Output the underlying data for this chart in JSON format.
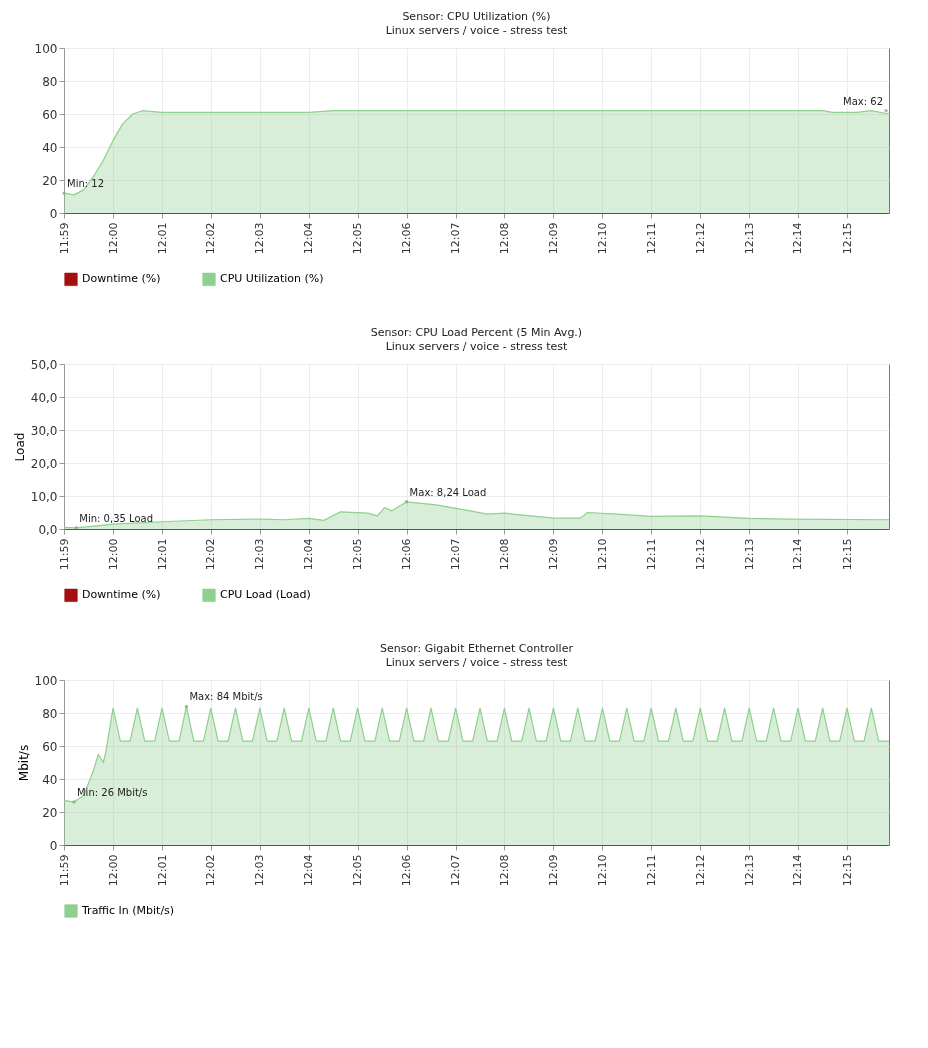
{
  "chart_data": [
    {
      "type": "area",
      "title": "Sensor: CPU Utilization (%)",
      "subtitle": "Linux servers / voice - stress test",
      "x": [
        11.9833,
        11.9867,
        11.99,
        11.9933,
        11.9967,
        12.0,
        12.0033,
        12.0067,
        12.01,
        12.0167,
        12.0667,
        12.075,
        12.2417,
        12.245,
        12.2533,
        12.2583,
        12.2643
      ],
      "series": [
        {
          "name": "Downtime (%)",
          "color": "#a50f0f",
          "values": [
            null,
            null,
            null,
            null,
            null,
            null,
            null,
            null,
            null,
            null,
            null,
            null,
            null,
            null,
            null,
            null,
            null
          ]
        },
        {
          "name": "CPU Utilization (%)",
          "color": "#8fcf8f",
          "values": [
            12,
            11,
            14,
            22,
            32,
            44,
            54,
            60,
            62,
            61,
            61,
            62,
            62,
            61,
            61,
            62,
            60
          ]
        }
      ],
      "xlim": [
        11.9833,
        12.2643
      ],
      "ylim": [
        0,
        100
      ],
      "yticks": [
        0,
        20,
        40,
        60,
        80,
        100
      ],
      "xticks": [
        {
          "value": 11.9833,
          "label": "11:59"
        },
        {
          "value": 12.0,
          "label": "12:00"
        },
        {
          "value": 12.0167,
          "label": "12:01"
        },
        {
          "value": 12.0333,
          "label": "12:02"
        },
        {
          "value": 12.05,
          "label": "12:03"
        },
        {
          "value": 12.0667,
          "label": "12:04"
        },
        {
          "value": 12.0833,
          "label": "12:05"
        },
        {
          "value": 12.1,
          "label": "12:06"
        },
        {
          "value": 12.1167,
          "label": "12:07"
        },
        {
          "value": 12.1333,
          "label": "12:08"
        },
        {
          "value": 12.15,
          "label": "12:09"
        },
        {
          "value": 12.1667,
          "label": "12:10"
        },
        {
          "value": 12.1833,
          "label": "12:11"
        },
        {
          "value": 12.2,
          "label": "12:12"
        },
        {
          "value": 12.2167,
          "label": "12:13"
        },
        {
          "value": 12.2333,
          "label": "12:14"
        },
        {
          "value": 12.25,
          "label": "12:15"
        }
      ],
      "annotations": [
        {
          "text": "Min: 12",
          "x": 11.9833,
          "y": 12
        },
        {
          "text": "Max: 62",
          "x": 12.2633,
          "y": 62
        }
      ],
      "grid": true,
      "legend": "bottom"
    },
    {
      "type": "area",
      "title": "Sensor: CPU Load Percent (5 Min Avg.)",
      "subtitle": "Linux servers / voice - stress test",
      "ylabel": "Load",
      "x": [
        11.9833,
        11.9875,
        12.0,
        12.0167,
        12.0333,
        12.05,
        12.0583,
        12.0667,
        12.0717,
        12.0775,
        12.0867,
        12.09,
        12.0925,
        12.095,
        12.1,
        12.11,
        12.1217,
        12.1275,
        12.1333,
        12.15,
        12.1592,
        12.1617,
        12.1717,
        12.1833,
        12.2,
        12.2167,
        12.23,
        12.2643
      ],
      "series": [
        {
          "name": "Downtime (%)",
          "color": "#a50f0f",
          "values": [
            null,
            null,
            null,
            null,
            null,
            null,
            null,
            null,
            null,
            null,
            null,
            null,
            null,
            null,
            null,
            null,
            null,
            null,
            null,
            null,
            null,
            null,
            null,
            null,
            null,
            null,
            null,
            null
          ]
        },
        {
          "name": "CPU Load (Load)",
          "color": "#8fcf8f",
          "values": [
            0.5,
            0.35,
            1.5,
            2.2,
            2.8,
            3.0,
            2.8,
            3.2,
            2.6,
            5.2,
            4.8,
            4.0,
            6.5,
            5.5,
            8.24,
            7.3,
            5.5,
            4.5,
            4.8,
            3.3,
            3.3,
            5.0,
            4.5,
            3.8,
            4.0,
            3.2,
            3.0,
            2.8
          ]
        }
      ],
      "xlim": [
        11.9833,
        12.2643
      ],
      "ylim": [
        0,
        50
      ],
      "yticks": [
        {
          "value": 0,
          "label": "0,0"
        },
        {
          "value": 10,
          "label": "10,0"
        },
        {
          "value": 20,
          "label": "20,0"
        },
        {
          "value": 30,
          "label": "30,0"
        },
        {
          "value": 40,
          "label": "40,0"
        },
        {
          "value": 50,
          "label": "50,0"
        }
      ],
      "xticks": [
        {
          "value": 11.9833,
          "label": "11:59"
        },
        {
          "value": 12.0,
          "label": "12:00"
        },
        {
          "value": 12.0167,
          "label": "12:01"
        },
        {
          "value": 12.0333,
          "label": "12:02"
        },
        {
          "value": 12.05,
          "label": "12:03"
        },
        {
          "value": 12.0667,
          "label": "12:04"
        },
        {
          "value": 12.0833,
          "label": "12:05"
        },
        {
          "value": 12.1,
          "label": "12:06"
        },
        {
          "value": 12.1167,
          "label": "12:07"
        },
        {
          "value": 12.1333,
          "label": "12:08"
        },
        {
          "value": 12.15,
          "label": "12:09"
        },
        {
          "value": 12.1667,
          "label": "12:10"
        },
        {
          "value": 12.1833,
          "label": "12:11"
        },
        {
          "value": 12.2,
          "label": "12:12"
        },
        {
          "value": 12.2167,
          "label": "12:13"
        },
        {
          "value": 12.2333,
          "label": "12:14"
        },
        {
          "value": 12.25,
          "label": "12:15"
        }
      ],
      "annotations": [
        {
          "text": "Min: 0,35 Load",
          "x": 11.9875,
          "y": 0.35
        },
        {
          "text": "Max: 8,24 Load",
          "x": 12.1,
          "y": 8.24
        }
      ],
      "grid": true,
      "legend": "bottom"
    },
    {
      "type": "area",
      "title": "Sensor: Gigabit Ethernet Controller",
      "subtitle": "Linux servers / voice - stress test",
      "ylabel": "Mbit/s",
      "x": [
        11.9833,
        11.9867,
        11.99,
        11.9933,
        11.995,
        11.9967,
        11.9975,
        12.0,
        12.0025,
        12.0058,
        12.0083,
        12.0108,
        12.0142,
        12.0167,
        12.0192,
        12.0225,
        12.025,
        12.0275,
        12.0308,
        12.0333,
        12.0358,
        12.0392,
        12.0417,
        12.0442,
        12.0475,
        12.05,
        12.0525,
        12.0558,
        12.0583,
        12.0608,
        12.0642,
        12.0667,
        12.0692,
        12.0725,
        12.075,
        12.0775,
        12.0808,
        12.0833,
        12.0858,
        12.0892,
        12.0917,
        12.0942,
        12.0975,
        12.1,
        12.1025,
        12.1058,
        12.1083,
        12.1108,
        12.1142,
        12.1167,
        12.1192,
        12.1225,
        12.125,
        12.1275,
        12.1308,
        12.1333,
        12.1358,
        12.1392,
        12.1417,
        12.1442,
        12.1475,
        12.15,
        12.1525,
        12.1558,
        12.1583,
        12.1608,
        12.1642,
        12.1667,
        12.1692,
        12.1725,
        12.175,
        12.1775,
        12.1808,
        12.1833,
        12.1858,
        12.1892,
        12.1917,
        12.1942,
        12.1975,
        12.2,
        12.2025,
        12.2058,
        12.2083,
        12.2108,
        12.2142,
        12.2167,
        12.2192,
        12.2225,
        12.225,
        12.2275,
        12.2308,
        12.2333,
        12.2358,
        12.2392,
        12.2417,
        12.2442,
        12.2475,
        12.25,
        12.2525,
        12.2558,
        12.2583,
        12.2608,
        12.2643
      ],
      "series": [
        {
          "name": "Traffic In (Mbit/s)",
          "color": "#8fcf8f",
          "values": [
            27,
            26,
            30,
            45,
            55,
            50,
            56,
            83,
            63,
            63,
            83,
            63,
            63,
            83,
            63,
            63,
            84,
            63,
            63,
            83,
            63,
            63,
            83,
            63,
            63,
            83,
            63,
            63,
            83,
            63,
            63,
            83,
            63,
            63,
            83,
            63,
            63,
            83,
            63,
            63,
            83,
            63,
            63,
            83,
            63,
            63,
            83,
            63,
            63,
            83,
            63,
            63,
            83,
            63,
            63,
            83,
            63,
            63,
            83,
            63,
            63,
            83,
            63,
            63,
            83,
            63,
            63,
            83,
            63,
            63,
            83,
            63,
            63,
            83,
            63,
            63,
            83,
            63,
            63,
            83,
            63,
            63,
            83,
            63,
            63,
            83,
            63,
            63,
            83,
            63,
            63,
            83,
            63,
            63,
            83,
            63,
            63,
            83,
            63,
            63,
            83,
            63,
            63
          ]
        }
      ],
      "xlim": [
        11.9833,
        12.2643
      ],
      "ylim": [
        0,
        100
      ],
      "yticks": [
        0,
        20,
        40,
        60,
        80,
        100
      ],
      "xticks": [
        {
          "value": 11.9833,
          "label": "11:59"
        },
        {
          "value": 12.0,
          "label": "12:00"
        },
        {
          "value": 12.0167,
          "label": "12:01"
        },
        {
          "value": 12.0333,
          "label": "12:02"
        },
        {
          "value": 12.05,
          "label": "12:03"
        },
        {
          "value": 12.0667,
          "label": "12:04"
        },
        {
          "value": 12.0833,
          "label": "12:05"
        },
        {
          "value": 12.1,
          "label": "12:06"
        },
        {
          "value": 12.1167,
          "label": "12:07"
        },
        {
          "value": 12.1333,
          "label": "12:08"
        },
        {
          "value": 12.15,
          "label": "12:09"
        },
        {
          "value": 12.1667,
          "label": "12:10"
        },
        {
          "value": 12.1833,
          "label": "12:11"
        },
        {
          "value": 12.2,
          "label": "12:12"
        },
        {
          "value": 12.2167,
          "label": "12:13"
        },
        {
          "value": 12.2333,
          "label": "12:14"
        },
        {
          "value": 12.25,
          "label": "12:15"
        }
      ],
      "annotations": [
        {
          "text": "Max: 84 Mbit/s",
          "x": 12.025,
          "y": 84
        },
        {
          "text": "Min: 26 Mbit/s",
          "x": 11.9867,
          "y": 26
        }
      ],
      "grid": true,
      "legend": "bottom"
    }
  ]
}
